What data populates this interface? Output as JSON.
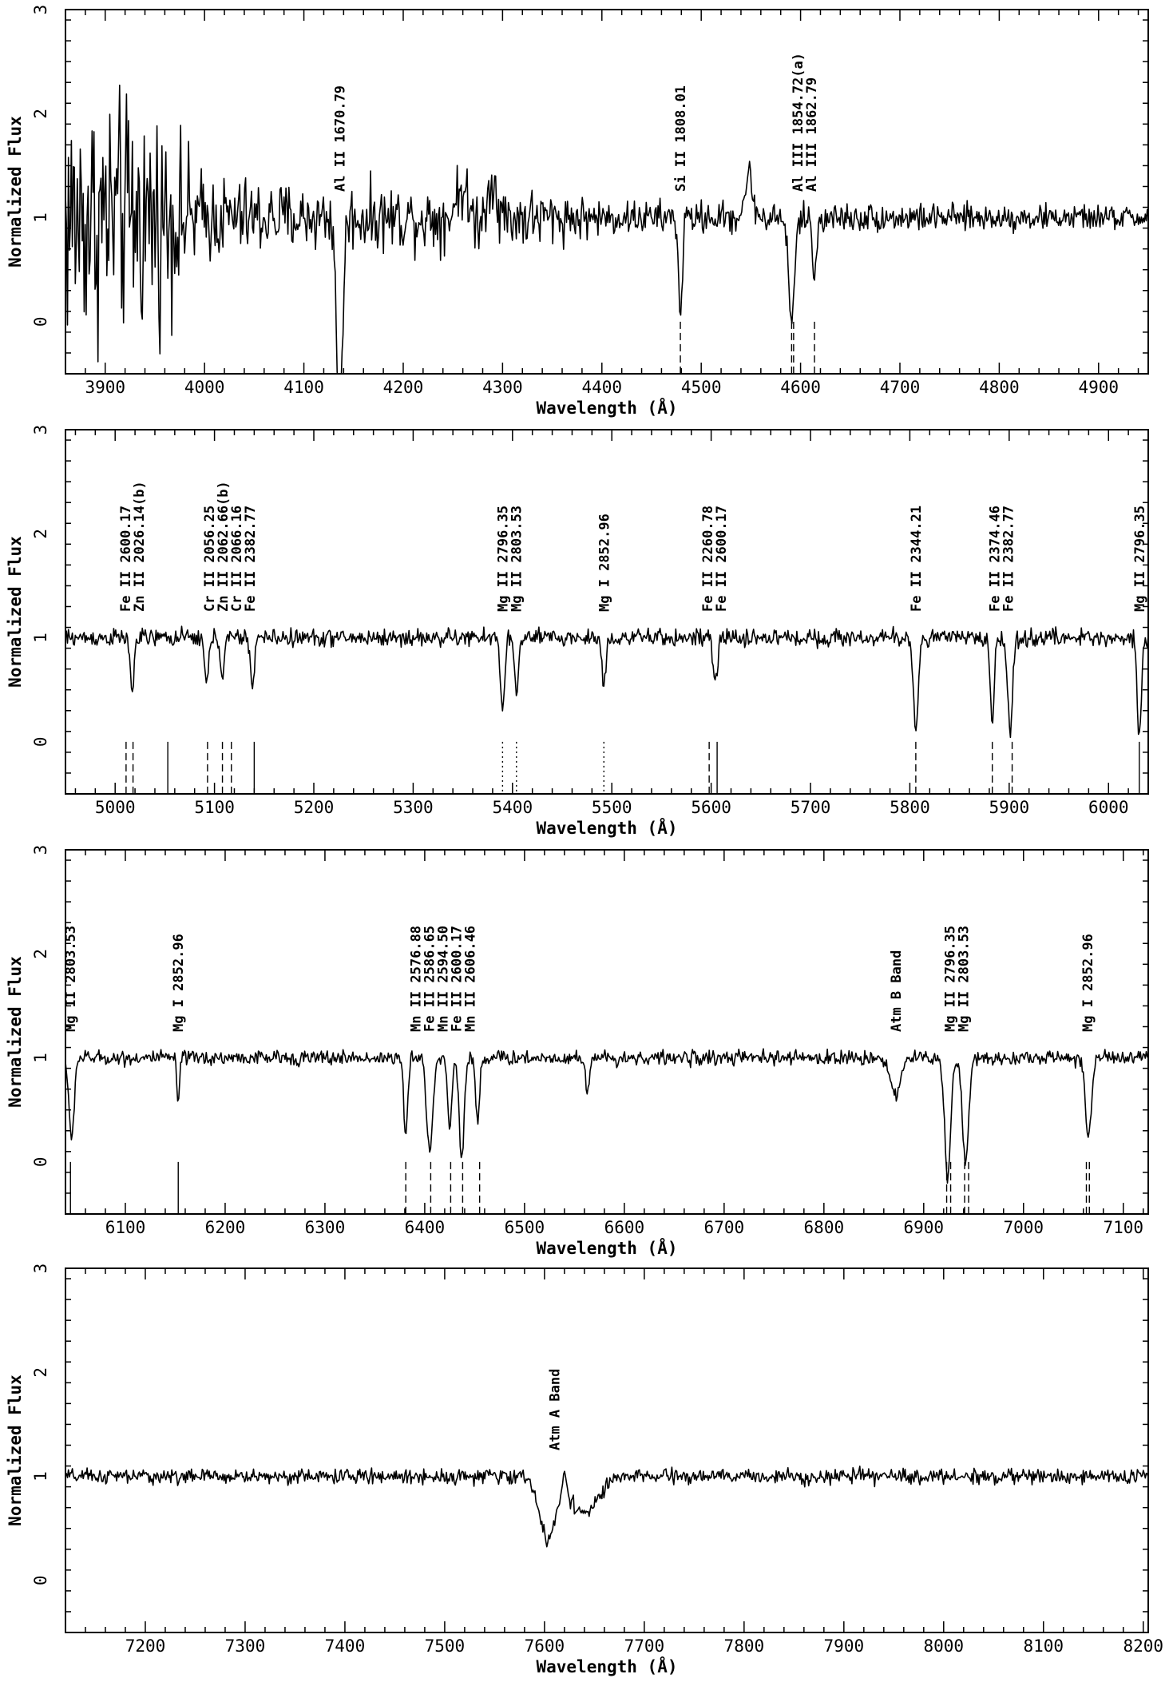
{
  "chart_data": [
    {
      "type": "line",
      "panel": 1,
      "xlabel": "Wavelength (Å)",
      "ylabel": "Normalized Flux",
      "xlim": [
        3860,
        4950
      ],
      "ylim": [
        -0.5,
        3
      ],
      "xticks": [
        3900,
        4000,
        4100,
        4200,
        4300,
        4400,
        4500,
        4600,
        4700,
        4800,
        4900
      ],
      "yticks": [
        0,
        1,
        2,
        3
      ],
      "series": [
        {
          "continuum": 1.0,
          "noise_profile": [
            [
              3860,
              0.9
            ],
            [
              3950,
              0.75
            ],
            [
              4000,
              0.3
            ],
            [
              4100,
              0.22
            ],
            [
              4250,
              0.22
            ],
            [
              4330,
              0.2
            ],
            [
              4400,
              0.12
            ],
            [
              4600,
              0.1
            ],
            [
              4950,
              0.08
            ]
          ],
          "features": [
            {
              "x": 4136,
              "depth": 1.8,
              "width": 3
            },
            {
              "x": 4479,
              "depth": 0.9,
              "width": 2
            },
            {
              "x": 4591,
              "depth": 1.0,
              "width": 3
            },
            {
              "x": 4614,
              "depth": 0.6,
              "width": 2
            },
            {
              "x": 4548,
              "depth": -0.4,
              "width": 4
            },
            {
              "x": 4258,
              "depth": -0.3,
              "width": 5
            },
            {
              "x": 4290,
              "depth": -0.4,
              "width": 4
            }
          ]
        }
      ],
      "tick_markers": [
        {
          "x": 4479,
          "style": "dashed"
        },
        {
          "x": 4591,
          "style": "dashed"
        },
        {
          "x": 4593,
          "style": "dashed"
        },
        {
          "x": 4614,
          "style": "dashed"
        }
      ],
      "annotations": [
        {
          "x": 4136,
          "lines": [
            "Al II 1670.79"
          ]
        },
        {
          "x": 4479,
          "lines": [
            "Si II 1808.01"
          ]
        },
        {
          "x": 4604,
          "lines": [
            "Al III 1854.72(a)",
            "Al III 1862.79"
          ]
        }
      ]
    },
    {
      "type": "line",
      "panel": 2,
      "xlabel": "Wavelength (Å)",
      "ylabel": "Normalized Flux",
      "xlim": [
        4950,
        6040
      ],
      "ylim": [
        -0.5,
        3
      ],
      "xticks": [
        5000,
        5100,
        5200,
        5300,
        5400,
        5500,
        5600,
        5700,
        5800,
        5900,
        6000
      ],
      "yticks": [
        0,
        1,
        2,
        3
      ],
      "series": [
        {
          "continuum": 1.0,
          "noise_profile": [
            [
              4950,
              0.06
            ],
            [
              6040,
              0.06
            ]
          ],
          "features": [
            {
              "x": 5017,
              "depth": 0.5,
              "width": 2
            },
            {
              "x": 5092,
              "depth": 0.45,
              "width": 2
            },
            {
              "x": 5108,
              "depth": 0.35,
              "width": 2
            },
            {
              "x": 5138,
              "depth": 0.45,
              "width": 2
            },
            {
              "x": 5390,
              "depth": 0.7,
              "width": 2
            },
            {
              "x": 5404,
              "depth": 0.55,
              "width": 2
            },
            {
              "x": 5492,
              "depth": 0.45,
              "width": 2
            },
            {
              "x": 5604,
              "depth": 0.4,
              "width": 2.5
            },
            {
              "x": 5806,
              "depth": 0.85,
              "width": 2.5
            },
            {
              "x": 5883,
              "depth": 0.8,
              "width": 2
            },
            {
              "x": 5901,
              "depth": 0.9,
              "width": 2.5
            },
            {
              "x": 6031,
              "depth": 0.95,
              "width": 2
            }
          ]
        }
      ],
      "tick_markers": [
        {
          "x": 5011,
          "style": "dashed"
        },
        {
          "x": 5018,
          "style": "dashed"
        },
        {
          "x": 5053,
          "style": "solid"
        },
        {
          "x": 5093,
          "style": "dashed"
        },
        {
          "x": 5108,
          "style": "dashed"
        },
        {
          "x": 5117,
          "style": "dashed"
        },
        {
          "x": 5140,
          "style": "solid"
        },
        {
          "x": 5390,
          "style": "dotted"
        },
        {
          "x": 5404,
          "style": "dotted"
        },
        {
          "x": 5492,
          "style": "dotted"
        },
        {
          "x": 5598,
          "style": "dashed"
        },
        {
          "x": 5606,
          "style": "solid"
        },
        {
          "x": 5806,
          "style": "dashed"
        },
        {
          "x": 5883,
          "style": "dashed"
        },
        {
          "x": 5903,
          "style": "dashed"
        },
        {
          "x": 6031,
          "style": "solid"
        }
      ],
      "annotations": [
        {
          "x": 5017,
          "lines": [
            "Fe II 2600.17",
            "Zn II 2026.14(b)"
          ]
        },
        {
          "x": 5115,
          "lines": [
            "Cr II 2056.25",
            "Zn II 2062.66(b)",
            "Cr II 2066.16",
            "Fe II 2382.77"
          ]
        },
        {
          "x": 5397,
          "lines": [
            "Mg II 2796.35",
            "Mg II 2803.53"
          ]
        },
        {
          "x": 5492,
          "lines": [
            "Mg I  2852.96"
          ]
        },
        {
          "x": 5603,
          "lines": [
            "Fe II 2260.78",
            "Fe II 2600.17"
          ]
        },
        {
          "x": 5806,
          "lines": [
            "Fe II 2344.21"
          ]
        },
        {
          "x": 5892,
          "lines": [
            "Fe II 2374.46",
            "Fe II 2382.77"
          ]
        },
        {
          "x": 6031,
          "lines": [
            "Mg II 2796.35"
          ]
        }
      ]
    },
    {
      "type": "line",
      "panel": 3,
      "xlabel": "Wavelength (Å)",
      "ylabel": "Normalized Flux",
      "xlim": [
        6040,
        7125
      ],
      "ylim": [
        -0.5,
        3
      ],
      "xticks": [
        6100,
        6200,
        6300,
        6400,
        6500,
        6600,
        6700,
        6800,
        6900,
        7000,
        7100
      ],
      "yticks": [
        0,
        1,
        2,
        3
      ],
      "series": [
        {
          "continuum": 1.0,
          "noise_profile": [
            [
              6040,
              0.05
            ],
            [
              7125,
              0.05
            ]
          ],
          "features": [
            {
              "x": 6046,
              "depth": 0.8,
              "width": 2.5
            },
            {
              "x": 6153,
              "depth": 0.4,
              "width": 1.5
            },
            {
              "x": 6381,
              "depth": 0.75,
              "width": 2
            },
            {
              "x": 6405,
              "depth": 0.9,
              "width": 3
            },
            {
              "x": 6425,
              "depth": 0.7,
              "width": 2
            },
            {
              "x": 6437,
              "depth": 0.95,
              "width": 2.5
            },
            {
              "x": 6453,
              "depth": 0.6,
              "width": 2
            },
            {
              "x": 6563,
              "depth": 0.3,
              "width": 2
            },
            {
              "x": 6872,
              "depth": 0.35,
              "width": 5
            },
            {
              "x": 6924,
              "depth": 1.15,
              "width": 3
            },
            {
              "x": 6942,
              "depth": 1.05,
              "width": 3
            },
            {
              "x": 7065,
              "depth": 0.75,
              "width": 3
            }
          ]
        }
      ],
      "tick_markers": [
        {
          "x": 6045,
          "style": "solid"
        },
        {
          "x": 6153,
          "style": "solid"
        },
        {
          "x": 6381,
          "style": "dashed"
        },
        {
          "x": 6406,
          "style": "dashed"
        },
        {
          "x": 6426,
          "style": "dashed"
        },
        {
          "x": 6438,
          "style": "dashed"
        },
        {
          "x": 6455,
          "style": "dashed"
        },
        {
          "x": 6923,
          "style": "dashed"
        },
        {
          "x": 6927,
          "style": "dashed"
        },
        {
          "x": 6941,
          "style": "dashed"
        },
        {
          "x": 6945,
          "style": "dashed"
        },
        {
          "x": 7063,
          "style": "dashed"
        },
        {
          "x": 7066,
          "style": "dashed"
        }
      ],
      "annotations": [
        {
          "x": 6045,
          "lines": [
            "Mg II 2803.53"
          ]
        },
        {
          "x": 6153,
          "lines": [
            "Mg I 2852.96"
          ]
        },
        {
          "x": 6418,
          "lines": [
            "Mn II 2576.88",
            "Fe II 2586.65",
            "Mn II 2594.50",
            "Fe II 2600.17",
            "Mn II 2606.46"
          ]
        },
        {
          "x": 6872,
          "lines": [
            "Atm B Band"
          ]
        },
        {
          "x": 6933,
          "lines": [
            "Mg II 2796.35",
            "Mg II 2803.53"
          ]
        },
        {
          "x": 7064,
          "lines": [
            "Mg I 2852.96"
          ]
        }
      ]
    },
    {
      "type": "line",
      "panel": 4,
      "xlabel": "Wavelength (Å)",
      "ylabel": "Normalized Flux",
      "xlim": [
        7120,
        8205
      ],
      "ylim": [
        -0.5,
        3
      ],
      "xticks": [
        7200,
        7300,
        7400,
        7500,
        7600,
        7700,
        7800,
        7900,
        8000,
        8100,
        8200
      ],
      "yticks": [
        0,
        1,
        2,
        3
      ],
      "series": [
        {
          "continuum": 1.0,
          "noise_profile": [
            [
              7120,
              0.05
            ],
            [
              8205,
              0.05
            ]
          ],
          "features": [
            {
              "x": 7603,
              "depth": 0.6,
              "width": 8
            },
            {
              "x": 7640,
              "depth": 0.35,
              "width": 14
            },
            {
              "x": 7620,
              "depth": -0.25,
              "width": 2
            }
          ]
        }
      ],
      "tick_markers": [],
      "annotations": [
        {
          "x": 7610,
          "lines": [
            "Atm A Band"
          ]
        }
      ]
    }
  ]
}
